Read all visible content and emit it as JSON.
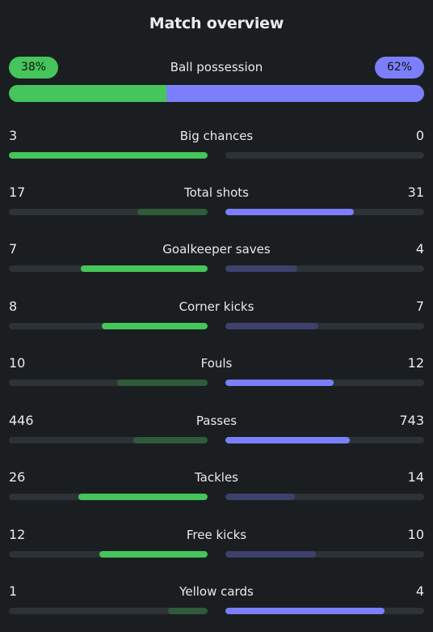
{
  "title": "Match overview",
  "colors": {
    "home_strong": "#45c55a",
    "home_weak": "#2f5b3a",
    "away_strong": "#7b7ffb",
    "away_weak": "#3d416b",
    "track": "#2d3236"
  },
  "possession": {
    "label": "Ball possession",
    "home": "38%",
    "away": "62%",
    "home_pct": 38,
    "away_pct": 62
  },
  "stats": [
    {
      "label": "Big chances",
      "home": "3",
      "away": "0",
      "home_num": 3,
      "away_num": 0
    },
    {
      "label": "Total shots",
      "home": "17",
      "away": "31",
      "home_num": 17,
      "away_num": 31
    },
    {
      "label": "Goalkeeper saves",
      "home": "7",
      "away": "4",
      "home_num": 7,
      "away_num": 4
    },
    {
      "label": "Corner kicks",
      "home": "8",
      "away": "7",
      "home_num": 8,
      "away_num": 7
    },
    {
      "label": "Fouls",
      "home": "10",
      "away": "12",
      "home_num": 10,
      "away_num": 12
    },
    {
      "label": "Passes",
      "home": "446",
      "away": "743",
      "home_num": 446,
      "away_num": 743
    },
    {
      "label": "Tackles",
      "home": "26",
      "away": "14",
      "home_num": 26,
      "away_num": 14
    },
    {
      "label": "Free kicks",
      "home": "12",
      "away": "10",
      "home_num": 12,
      "away_num": 10
    },
    {
      "label": "Yellow cards",
      "home": "1",
      "away": "4",
      "home_num": 1,
      "away_num": 4
    }
  ]
}
